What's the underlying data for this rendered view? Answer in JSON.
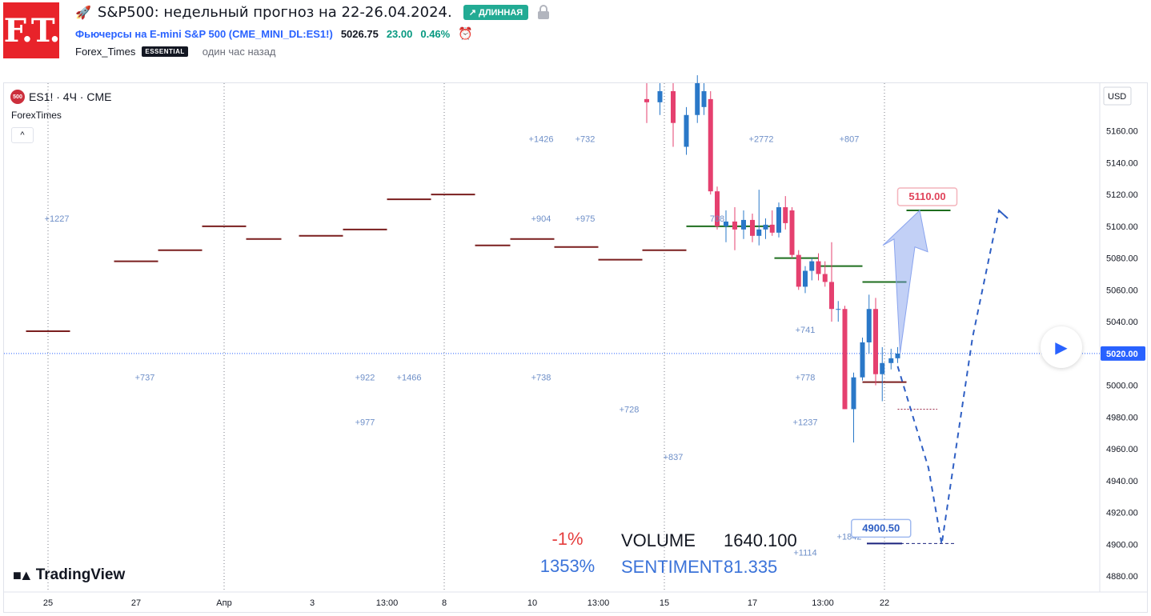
{
  "header": {
    "logo_text": "F.T.",
    "title": "S&P500: недельный прогноз на 22-26.04.2024.",
    "title_icon": "rocket-icon",
    "badge": "↗ ДЛИННАЯ",
    "symbol": "Фьючерсы на E-mini S&P 500 (CME_MINI_DL:ES1!)",
    "price": "5026.75",
    "change": "23.00",
    "change_pct": "0.46%",
    "author": "Forex_Times",
    "author_badge": "ESSENTIAL",
    "published": "один час назад"
  },
  "legend": {
    "series_icon_text": "500",
    "series": "ES1! · 4Ч · CME",
    "indicator": "ForexTimes",
    "collapse_glyph": "^"
  },
  "watermark": "TradingView",
  "stats": {
    "change_pct": "-1%",
    "sentiment_pct": "1353%",
    "volume_label": "VOLUME",
    "volume_value": "1640.100",
    "sentiment_label": "SENTIMENT",
    "sentiment_value": "81.335"
  },
  "colors": {
    "up": "#2a78c8",
    "down": "#e5406f",
    "level": "#7a1e1e",
    "green_level": "#1e6e1e",
    "forecast": "#2f5fc4",
    "price_tag": "#2962ff"
  },
  "chart_data": {
    "type": "candlestick",
    "axis_unit": "USD",
    "ylim": [
      4870,
      5190
    ],
    "y_ticks": [
      5160,
      5140,
      5120,
      5100,
      5080,
      5060,
      5040,
      5020,
      5000,
      4980,
      4960,
      4940,
      4920,
      4900,
      4880
    ],
    "x_ticks": [
      "25",
      "27",
      "Апр",
      "3",
      "13:00",
      "8",
      "10",
      "13:00",
      "15",
      "17",
      "13:00",
      "22"
    ],
    "current_price": 5020.0,
    "current_price_label": "5020.00",
    "levels": [
      {
        "from": 0.5,
        "to": 1.5,
        "y": 5034
      },
      {
        "from": 2.5,
        "to": 3.5,
        "y": 5078
      },
      {
        "from": 3.5,
        "to": 4.5,
        "y": 5085
      },
      {
        "from": 4.5,
        "to": 5.5,
        "y": 5100
      },
      {
        "from": 5.5,
        "to": 6.3,
        "y": 5092
      },
      {
        "from": 6.7,
        "to": 7.7,
        "y": 5094
      },
      {
        "from": 7.7,
        "to": 8.7,
        "y": 5098
      },
      {
        "from": 8.7,
        "to": 9.7,
        "y": 5117
      },
      {
        "from": 9.7,
        "to": 10.7,
        "y": 5120
      },
      {
        "from": 10.7,
        "to": 11.5,
        "y": 5088
      },
      {
        "from": 11.5,
        "to": 12.5,
        "y": 5092
      },
      {
        "from": 12.5,
        "to": 13.5,
        "y": 5087
      },
      {
        "from": 13.5,
        "to": 14.5,
        "y": 5079
      },
      {
        "from": 14.5,
        "to": 15.5,
        "y": 5085
      },
      {
        "from": 19.5,
        "to": 20.5,
        "y": 5002
      }
    ],
    "green_levels": [
      {
        "from": 15.5,
        "to": 16.5,
        "y": 5100
      },
      {
        "from": 16.5,
        "to": 17.5,
        "y": 5100
      },
      {
        "from": 17.5,
        "to": 18.5,
        "y": 5080
      },
      {
        "from": 18.5,
        "to": 19.5,
        "y": 5075
      },
      {
        "from": 19.5,
        "to": 20.5,
        "y": 5065
      },
      {
        "from": 20.5,
        "to": 21.5,
        "y": 5110
      }
    ],
    "target_labels": [
      {
        "text": "5110.00",
        "y": 5110
      },
      {
        "text": "4900.50",
        "y": 4900.5
      }
    ],
    "volume_labels": [
      {
        "text": "+1227",
        "x": 1.2,
        "y": 5103
      },
      {
        "text": "+737",
        "x": 3.2,
        "y": 5003
      },
      {
        "text": "+922",
        "x": 8.2,
        "y": 5003
      },
      {
        "text": "+977",
        "x": 8.2,
        "y": 4975
      },
      {
        "text": "+1466",
        "x": 9.2,
        "y": 5003
      },
      {
        "text": "+1426",
        "x": 12.2,
        "y": 5153
      },
      {
        "text": "+732",
        "x": 13.2,
        "y": 5153
      },
      {
        "text": "+904",
        "x": 12.2,
        "y": 5103
      },
      {
        "text": "+975",
        "x": 13.2,
        "y": 5103
      },
      {
        "text": "+738",
        "x": 12.2,
        "y": 5003
      },
      {
        "text": "+728",
        "x": 14.2,
        "y": 4983
      },
      {
        "text": "+837",
        "x": 15.2,
        "y": 4953
      },
      {
        "text": "+2772",
        "x": 17.2,
        "y": 5153
      },
      {
        "text": "+807",
        "x": 19.2,
        "y": 5153
      },
      {
        "text": "+741",
        "x": 18.2,
        "y": 5033
      },
      {
        "text": "+778",
        "x": 18.2,
        "y": 5003
      },
      {
        "text": "+1237",
        "x": 18.2,
        "y": 4975
      },
      {
        "text": "+1114",
        "x": 18.2,
        "y": 4893
      },
      {
        "text": "+1842",
        "x": 19.2,
        "y": 4903
      },
      {
        "text": "708",
        "x": 16.2,
        "y": 5103
      }
    ],
    "candles": [
      {
        "x": 14.6,
        "o": 5180,
        "h": 5190,
        "l": 5165,
        "c": 5178
      },
      {
        "x": 14.9,
        "o": 5178,
        "h": 5190,
        "l": 5170,
        "c": 5185
      },
      {
        "x": 15.2,
        "o": 5185,
        "h": 5190,
        "l": 5150,
        "c": 5165
      },
      {
        "x": 15.5,
        "o": 5150,
        "h": 5175,
        "l": 5145,
        "c": 5170
      },
      {
        "x": 15.75,
        "o": 5170,
        "h": 5195,
        "l": 5165,
        "c": 5190
      },
      {
        "x": 15.9,
        "o": 5175,
        "h": 5190,
        "l": 5170,
        "c": 5185
      },
      {
        "x": 16.05,
        "o": 5180,
        "h": 5185,
        "l": 5120,
        "c": 5122
      },
      {
        "x": 16.2,
        "o": 5122,
        "h": 5125,
        "l": 5098,
        "c": 5100
      },
      {
        "x": 16.4,
        "o": 5100,
        "h": 5110,
        "l": 5090,
        "c": 5103
      },
      {
        "x": 16.6,
        "o": 5103,
        "h": 5112,
        "l": 5085,
        "c": 5098
      },
      {
        "x": 16.8,
        "o": 5098,
        "h": 5110,
        "l": 5092,
        "c": 5104
      },
      {
        "x": 17.0,
        "o": 5104,
        "h": 5108,
        "l": 5090,
        "c": 5094
      },
      {
        "x": 17.15,
        "o": 5094,
        "h": 5123,
        "l": 5088,
        "c": 5098
      },
      {
        "x": 17.3,
        "o": 5098,
        "h": 5105,
        "l": 5092,
        "c": 5101
      },
      {
        "x": 17.45,
        "o": 5101,
        "h": 5110,
        "l": 5094,
        "c": 5096
      },
      {
        "x": 17.6,
        "o": 5096,
        "h": 5115,
        "l": 5093,
        "c": 5112
      },
      {
        "x": 17.75,
        "o": 5112,
        "h": 5119,
        "l": 5098,
        "c": 5102
      },
      {
        "x": 17.9,
        "o": 5110,
        "h": 5112,
        "l": 5080,
        "c": 5082
      },
      {
        "x": 18.05,
        "o": 5082,
        "h": 5085,
        "l": 5060,
        "c": 5062
      },
      {
        "x": 18.2,
        "o": 5062,
        "h": 5075,
        "l": 5058,
        "c": 5072
      },
      {
        "x": 18.35,
        "o": 5072,
        "h": 5080,
        "l": 5066,
        "c": 5078
      },
      {
        "x": 18.5,
        "o": 5078,
        "h": 5083,
        "l": 5066,
        "c": 5070
      },
      {
        "x": 18.65,
        "o": 5070,
        "h": 5078,
        "l": 5062,
        "c": 5065
      },
      {
        "x": 18.8,
        "o": 5065,
        "h": 5090,
        "l": 5040,
        "c": 5048
      },
      {
        "x": 18.95,
        "o": 5048,
        "h": 5053,
        "l": 5040,
        "c": 5048
      },
      {
        "x": 19.1,
        "o": 5048,
        "h": 5050,
        "l": 4985,
        "c": 4985
      },
      {
        "x": 19.3,
        "o": 4985,
        "h": 5008,
        "l": 4964,
        "c": 5005
      },
      {
        "x": 19.5,
        "o": 5005,
        "h": 5030,
        "l": 5003,
        "c": 5027
      },
      {
        "x": 19.65,
        "o": 5027,
        "h": 5057,
        "l": 5020,
        "c": 5048
      },
      {
        "x": 19.8,
        "o": 5048,
        "h": 5055,
        "l": 5000,
        "c": 5007
      },
      {
        "x": 19.95,
        "o": 5007,
        "h": 5024,
        "l": 4990,
        "c": 5014
      },
      {
        "x": 20.15,
        "o": 5014,
        "h": 5023,
        "l": 5010,
        "c": 5017
      },
      {
        "x": 20.3,
        "o": 5017,
        "h": 5024,
        "l": 5014,
        "c": 5020
      }
    ],
    "forecast_path": [
      {
        "x": 20.3,
        "y": 5012
      },
      {
        "x": 21.0,
        "y": 4948
      },
      {
        "x": 21.3,
        "y": 4900
      },
      {
        "x": 22.0,
        "y": 5030
      },
      {
        "x": 22.6,
        "y": 5110
      },
      {
        "x": 22.8,
        "y": 5105
      }
    ]
  }
}
